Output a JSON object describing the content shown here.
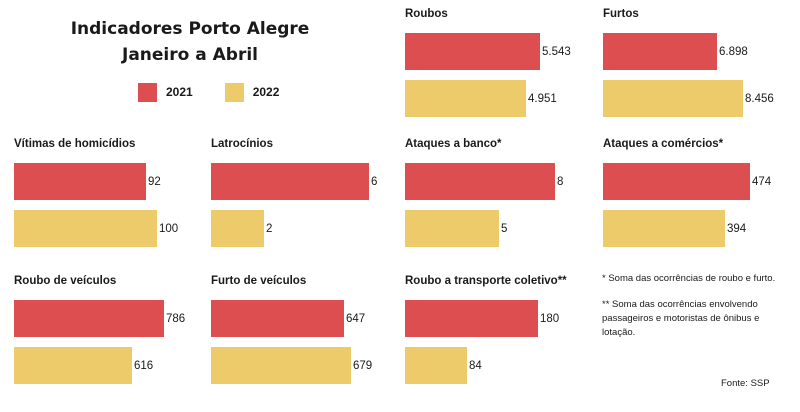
{
  "header": {
    "title_line1": "Indicadores Porto Alegre",
    "title_line2": "Janeiro a Abril"
  },
  "legend": [
    {
      "label": "2021",
      "color": "#dc4e50"
    },
    {
      "label": "2022",
      "color": "#eecb6a"
    }
  ],
  "chart_data": {
    "type": "bar",
    "orientation": "horizontal",
    "series_names": [
      "2021",
      "2022"
    ],
    "colors": {
      "2021": "#dc4e50",
      "2022": "#eecb6a"
    },
    "panels": [
      {
        "title": "Roubos",
        "values": [
          5543,
          4951
        ],
        "labels": [
          "5.543",
          "4.951"
        ]
      },
      {
        "title": "Furtos",
        "values": [
          6898,
          8456
        ],
        "labels": [
          "6.898",
          "8.456"
        ]
      },
      {
        "title": "Vítimas de homicídios",
        "values": [
          92,
          100
        ],
        "labels": [
          "92",
          "100"
        ]
      },
      {
        "title": "Latrocínios",
        "values": [
          6,
          2
        ],
        "labels": [
          "6",
          "2"
        ]
      },
      {
        "title": "Ataques a banco*",
        "values": [
          8,
          5
        ],
        "labels": [
          "8",
          "5"
        ]
      },
      {
        "title": "Ataques a comércios*",
        "values": [
          474,
          394
        ],
        "labels": [
          "474",
          "394"
        ]
      },
      {
        "title": "Roubo de veículos",
        "values": [
          786,
          616
        ],
        "labels": [
          "786",
          "616"
        ]
      },
      {
        "title": "Furto de veículos",
        "values": [
          647,
          679
        ],
        "labels": [
          "647",
          "679"
        ]
      },
      {
        "title": "Roubo a transporte coletivo**",
        "values": [
          180,
          84
        ],
        "labels": [
          "180",
          "84"
        ]
      }
    ]
  },
  "notes": [
    "* Soma das ocorrências de roubo e furto.",
    "** Soma das ocorrências envolvendo passageiros e motoristas de ônibus e lotação."
  ],
  "source": "Fonte: SSP"
}
